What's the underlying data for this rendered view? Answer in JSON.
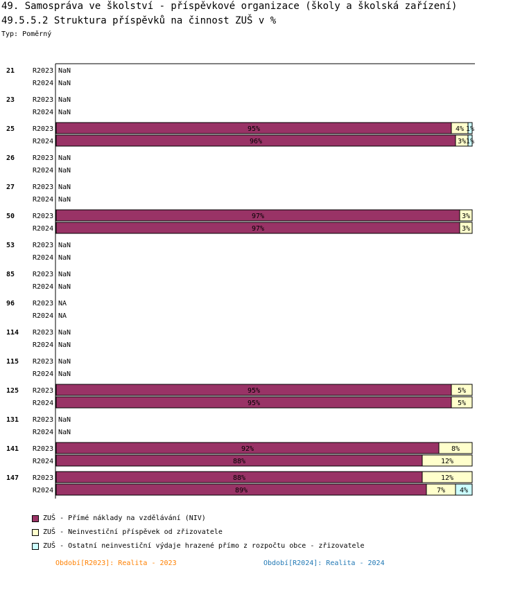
{
  "header": {
    "title": "49. Samospráva ve školství - příspěvkové organizace (školy a školská zařízení)",
    "subtitle": "49.5.5.2 Struktura příspěvků na činnost ZUŠ v %",
    "type": "Typ: Poměrný"
  },
  "chart_data": {
    "type": "bar",
    "orientation": "horizontal",
    "stacked": "percent",
    "xlim": [
      0,
      100
    ],
    "series": [
      {
        "name": "ZUŠ - Přímé náklady na vzdělávání (NIV)",
        "color": "#993366"
      },
      {
        "name": "ZUŠ - Neinvestiční příspěvek od zřizovatele",
        "color": "#ffffcc"
      },
      {
        "name": "ZUŠ - Ostatní neinvestiční výdaje hrazené přímo z rozpočtu obce - zřizovatele",
        "color": "#ccffff"
      }
    ],
    "groups": [
      {
        "label": "21",
        "rows": [
          {
            "period": "R2023",
            "text": "NaN"
          },
          {
            "period": "R2024",
            "text": "NaN"
          }
        ]
      },
      {
        "label": "23",
        "rows": [
          {
            "period": "R2023",
            "text": "NaN"
          },
          {
            "period": "R2024",
            "text": "NaN"
          }
        ]
      },
      {
        "label": "25",
        "rows": [
          {
            "period": "R2023",
            "values": [
              95,
              4,
              1
            ]
          },
          {
            "period": "R2024",
            "values": [
              96,
              3,
              1
            ]
          }
        ]
      },
      {
        "label": "26",
        "rows": [
          {
            "period": "R2023",
            "text": "NaN"
          },
          {
            "period": "R2024",
            "text": "NaN"
          }
        ]
      },
      {
        "label": "27",
        "rows": [
          {
            "period": "R2023",
            "text": "NaN"
          },
          {
            "period": "R2024",
            "text": "NaN"
          }
        ]
      },
      {
        "label": "50",
        "rows": [
          {
            "period": "R2023",
            "values": [
              97,
              3,
              0
            ]
          },
          {
            "period": "R2024",
            "values": [
              97,
              3,
              0
            ]
          }
        ]
      },
      {
        "label": "53",
        "rows": [
          {
            "period": "R2023",
            "text": "NaN"
          },
          {
            "period": "R2024",
            "text": "NaN"
          }
        ]
      },
      {
        "label": "85",
        "rows": [
          {
            "period": "R2023",
            "text": "NaN"
          },
          {
            "period": "R2024",
            "text": "NaN"
          }
        ]
      },
      {
        "label": "96",
        "rows": [
          {
            "period": "R2023",
            "text": "NA"
          },
          {
            "period": "R2024",
            "text": "NA"
          }
        ]
      },
      {
        "label": "114",
        "rows": [
          {
            "period": "R2023",
            "text": "NaN"
          },
          {
            "period": "R2024",
            "text": "NaN"
          }
        ]
      },
      {
        "label": "115",
        "rows": [
          {
            "period": "R2023",
            "text": "NaN"
          },
          {
            "period": "R2024",
            "text": "NaN"
          }
        ]
      },
      {
        "label": "125",
        "rows": [
          {
            "period": "R2023",
            "values": [
              95,
              5,
              0
            ]
          },
          {
            "period": "R2024",
            "values": [
              95,
              5,
              0
            ]
          }
        ]
      },
      {
        "label": "131",
        "rows": [
          {
            "period": "R2023",
            "text": "NaN"
          },
          {
            "period": "R2024",
            "text": "NaN"
          }
        ]
      },
      {
        "label": "141",
        "rows": [
          {
            "period": "R2023",
            "values": [
              92,
              8,
              0
            ]
          },
          {
            "period": "R2024",
            "values": [
              88,
              12,
              0
            ]
          }
        ]
      },
      {
        "label": "147",
        "rows": [
          {
            "period": "R2023",
            "values": [
              88,
              12,
              0
            ]
          },
          {
            "period": "R2024",
            "values": [
              89,
              7,
              4
            ]
          }
        ]
      }
    ]
  },
  "periods": [
    {
      "text": "Období[R2023]: Realita - 2023",
      "color": "#ff8000"
    },
    {
      "text": "Období[R2024]: Realita - 2024",
      "color": "#1f77b4"
    }
  ]
}
